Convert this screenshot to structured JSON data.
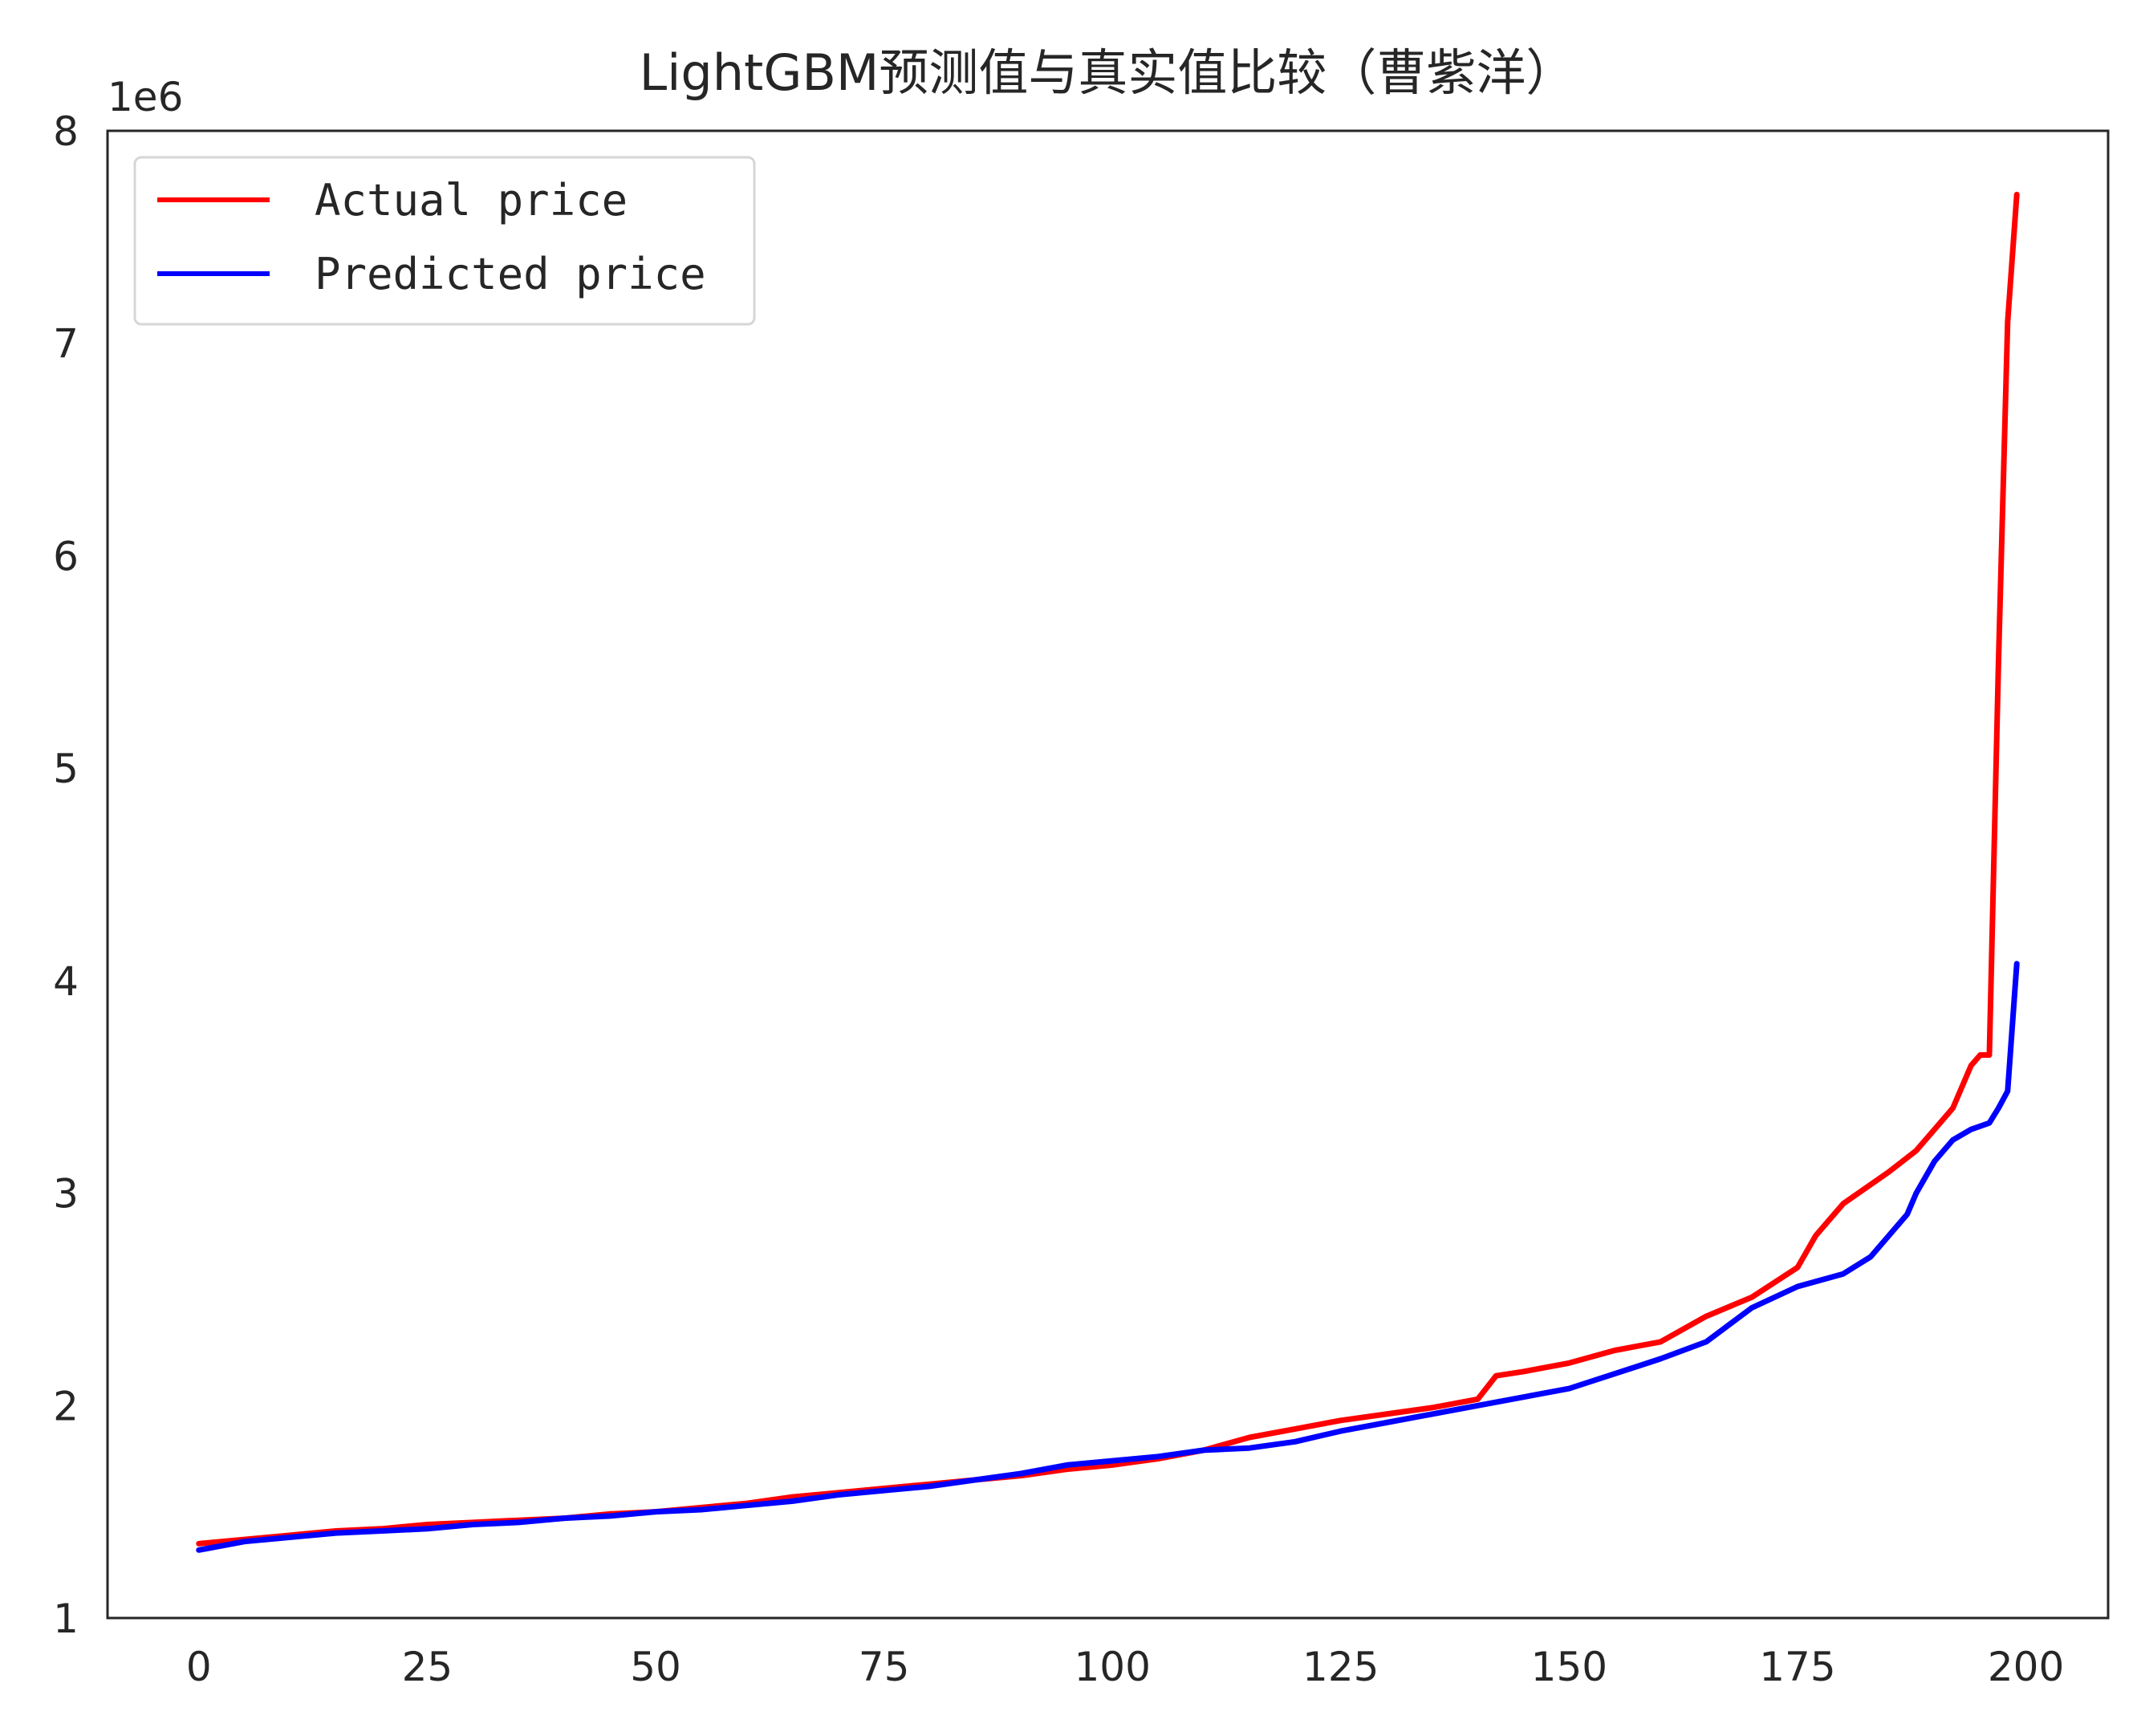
{
  "chart_data": {
    "type": "line",
    "title": "LightGBM预测值与真实值比较（曹紫洋）",
    "xlabel": "",
    "ylabel": "",
    "y_offset_label": "1e6",
    "xlim": [
      -10,
      209
    ],
    "ylim": [
      1000000,
      8000000
    ],
    "x_ticks": [
      0,
      25,
      50,
      75,
      100,
      125,
      150,
      175,
      200
    ],
    "x_tick_labels": [
      "0",
      "25",
      "50",
      "75",
      "100",
      "125",
      "150",
      "175",
      "200"
    ],
    "y_ticks": [
      1000000,
      2000000,
      3000000,
      4000000,
      5000000,
      6000000,
      7000000,
      8000000
    ],
    "y_tick_labels": [
      "1",
      "2",
      "3",
      "4",
      "5",
      "6",
      "7",
      "8"
    ],
    "grid": false,
    "legend_position": "top-left",
    "series": [
      {
        "name": "Actual price",
        "color": "#ff0000",
        "x": [
          0,
          5,
          10,
          15,
          20,
          25,
          30,
          35,
          40,
          45,
          50,
          55,
          60,
          65,
          70,
          75,
          80,
          85,
          90,
          95,
          100,
          105,
          110,
          115,
          120,
          125,
          130,
          135,
          140,
          142,
          145,
          150,
          155,
          160,
          165,
          170,
          175,
          177,
          180,
          185,
          188,
          190,
          192,
          194,
          195,
          196,
          197,
          198,
          199
        ],
        "values": [
          1350000,
          1370000,
          1390000,
          1410000,
          1420000,
          1440000,
          1450000,
          1460000,
          1470000,
          1490000,
          1500000,
          1520000,
          1540000,
          1570000,
          1590000,
          1610000,
          1630000,
          1650000,
          1670000,
          1700000,
          1720000,
          1750000,
          1790000,
          1850000,
          1890000,
          1930000,
          1960000,
          1990000,
          2030000,
          2140000,
          2160000,
          2200000,
          2260000,
          2300000,
          2420000,
          2510000,
          2650000,
          2800000,
          2950000,
          3100000,
          3200000,
          3300000,
          3400000,
          3600000,
          3650000,
          3650000,
          5500000,
          7100000,
          7700000
        ]
      },
      {
        "name": "Predicted price",
        "color": "#0000ff",
        "x": [
          0,
          5,
          10,
          15,
          20,
          25,
          30,
          35,
          40,
          45,
          50,
          55,
          60,
          65,
          70,
          75,
          80,
          85,
          90,
          95,
          100,
          105,
          110,
          115,
          120,
          125,
          130,
          135,
          140,
          145,
          150,
          155,
          160,
          165,
          170,
          175,
          180,
          183,
          185,
          187,
          188,
          190,
          192,
          194,
          196,
          197,
          198,
          199
        ],
        "values": [
          1320000,
          1360000,
          1380000,
          1400000,
          1410000,
          1420000,
          1440000,
          1450000,
          1470000,
          1480000,
          1500000,
          1510000,
          1530000,
          1550000,
          1580000,
          1600000,
          1620000,
          1650000,
          1680000,
          1720000,
          1740000,
          1760000,
          1790000,
          1800000,
          1830000,
          1880000,
          1920000,
          1960000,
          2000000,
          2040000,
          2080000,
          2150000,
          2220000,
          2300000,
          2460000,
          2560000,
          2620000,
          2700000,
          2800000,
          2900000,
          3000000,
          3150000,
          3250000,
          3300000,
          3330000,
          3400000,
          3480000,
          4080000
        ]
      }
    ]
  }
}
